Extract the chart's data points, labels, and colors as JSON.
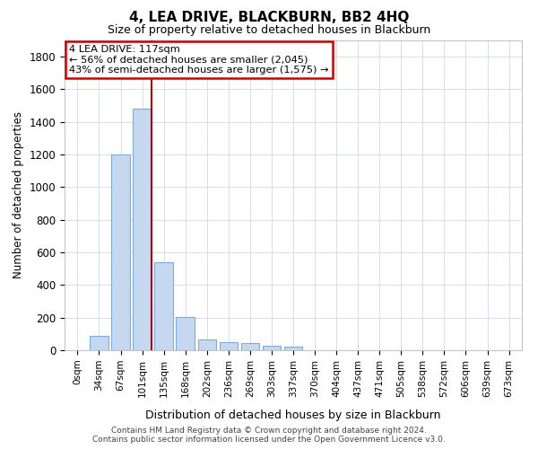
{
  "title": "4, LEA DRIVE, BLACKBURN, BB2 4HQ",
  "subtitle": "Size of property relative to detached houses in Blackburn",
  "xlabel": "Distribution of detached houses by size in Blackburn",
  "ylabel": "Number of detached properties",
  "bin_labels": [
    "0sqm",
    "34sqm",
    "67sqm",
    "101sqm",
    "135sqm",
    "168sqm",
    "202sqm",
    "236sqm",
    "269sqm",
    "303sqm",
    "337sqm",
    "370sqm",
    "404sqm",
    "437sqm",
    "471sqm",
    "505sqm",
    "538sqm",
    "572sqm",
    "606sqm",
    "639sqm",
    "673sqm"
  ],
  "bar_heights": [
    0,
    90,
    1200,
    1480,
    540,
    205,
    65,
    50,
    45,
    30,
    20,
    0,
    0,
    0,
    0,
    0,
    0,
    0,
    0,
    0,
    0
  ],
  "bar_color": "#c5d8f0",
  "bar_edgecolor": "#7aade0",
  "ylim": [
    0,
    1900
  ],
  "yticks": [
    0,
    200,
    400,
    600,
    800,
    1000,
    1200,
    1400,
    1600,
    1800
  ],
  "annotation_line1": "4 LEA DRIVE: 117sqm",
  "annotation_line2": "← 56% of detached houses are smaller (2,045)",
  "annotation_line3": "43% of semi-detached houses are larger (1,575) →",
  "annotation_box_color": "#ffffff",
  "annotation_box_edgecolor": "#cc0000",
  "red_line_bin": 3,
  "footer_line1": "Contains HM Land Registry data © Crown copyright and database right 2024.",
  "footer_line2": "Contains public sector information licensed under the Open Government Licence v3.0.",
  "bg_color": "#ffffff",
  "grid_color": "#cdd8ea"
}
